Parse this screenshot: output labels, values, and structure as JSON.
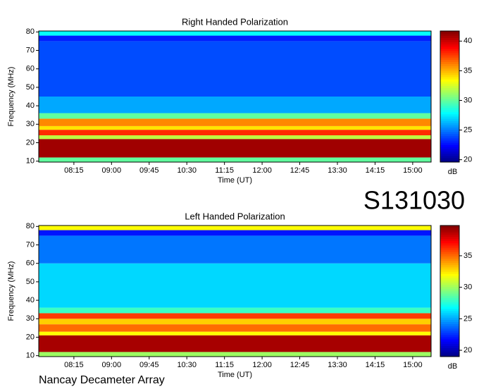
{
  "station_id": "S131030",
  "footer": "Nancay Decameter Array",
  "chart_data": [
    {
      "type": "heatmap",
      "title": "Right Handed Polarization",
      "xlabel": "Time (UT)",
      "ylabel": "Frequency (MHz)",
      "xlim": [
        453,
        922
      ],
      "xticks": [
        {
          "value": 495,
          "label": "08:15"
        },
        {
          "value": 540,
          "label": "09:00"
        },
        {
          "value": 585,
          "label": "09:45"
        },
        {
          "value": 630,
          "label": "10:30"
        },
        {
          "value": 675,
          "label": "11:15"
        },
        {
          "value": 720,
          "label": "12:00"
        },
        {
          "value": 765,
          "label": "12:45"
        },
        {
          "value": 810,
          "label": "13:30"
        },
        {
          "value": 855,
          "label": "14:15"
        },
        {
          "value": 900,
          "label": "15:00"
        }
      ],
      "ylim": [
        9.5,
        80.5
      ],
      "yticks": [
        10,
        20,
        30,
        40,
        50,
        60,
        70,
        80
      ],
      "y_bins": [
        9.5,
        12,
        22,
        24,
        27,
        29,
        33,
        36,
        45,
        75,
        78,
        80.5
      ],
      "values": [
        30,
        41,
        32,
        38,
        34,
        36,
        30,
        26,
        24,
        23,
        28
      ],
      "colorbar": {
        "label": "dB",
        "lim": [
          19.6,
          41.7
        ],
        "ticks": [
          20,
          25,
          30,
          35,
          40
        ]
      }
    },
    {
      "type": "heatmap",
      "title": "Left Handed Polarization",
      "xlabel": "Time (UT)",
      "ylabel": "Frequency (MHz)",
      "xlim": [
        453,
        922
      ],
      "xticks": [
        {
          "value": 495,
          "label": "08:15"
        },
        {
          "value": 540,
          "label": "09:00"
        },
        {
          "value": 585,
          "label": "09:45"
        },
        {
          "value": 630,
          "label": "10:30"
        },
        {
          "value": 675,
          "label": "11:15"
        },
        {
          "value": 720,
          "label": "12:00"
        },
        {
          "value": 765,
          "label": "12:45"
        },
        {
          "value": 810,
          "label": "13:30"
        },
        {
          "value": 855,
          "label": "14:15"
        },
        {
          "value": 900,
          "label": "15:00"
        }
      ],
      "ylim": [
        9.5,
        80.5
      ],
      "yticks": [
        10,
        20,
        30,
        40,
        50,
        60,
        70,
        80
      ],
      "y_bins": [
        9.5,
        12,
        21,
        23,
        27,
        30,
        33,
        36,
        60,
        75,
        78,
        80.5
      ],
      "values": [
        30,
        39,
        32,
        35,
        33,
        36,
        28,
        26,
        24,
        22,
        32
      ],
      "colorbar": {
        "label": "dB",
        "lim": [
          19,
          39.8
        ],
        "ticks": [
          20,
          25,
          30,
          35
        ]
      }
    }
  ]
}
